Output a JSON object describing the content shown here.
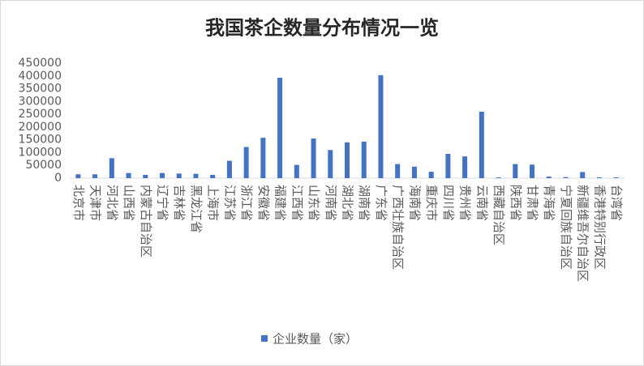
{
  "chart_data": {
    "type": "bar",
    "title": "我国茶企数量分布情况一览",
    "categories": [
      "北京市",
      "天津市",
      "河北省",
      "山西省",
      "内蒙古自治区",
      "辽宁省",
      "吉林省",
      "黑龙江省",
      "上海市",
      "江苏省",
      "浙江省",
      "安徽省",
      "福建省",
      "江西省",
      "山东省",
      "河南省",
      "湖北省",
      "湖南省",
      "广东省",
      "广西壮族自治区",
      "海南省",
      "重庆市",
      "四川省",
      "贵州省",
      "云南省",
      "西藏自治区",
      "陕西省",
      "甘肃省",
      "青海省",
      "宁夏回族自治区",
      "新疆维吾尔自治区",
      "香港特别行政区",
      "台湾省"
    ],
    "series": [
      {
        "name": "企业数量（家）",
        "color": "#4472c4",
        "values": [
          15000,
          15000,
          78000,
          20000,
          13000,
          20000,
          18000,
          17000,
          13000,
          68000,
          122000,
          158000,
          393000,
          52000,
          155000,
          110000,
          140000,
          143000,
          403000,
          55000,
          45000,
          25000,
          95000,
          85000,
          260000,
          3000,
          55000,
          53000,
          6000,
          4000,
          24000,
          3000,
          3000
        ]
      }
    ],
    "ylim": [
      0,
      450000
    ],
    "yticks": [
      0,
      50000,
      100000,
      150000,
      200000,
      250000,
      300000,
      350000,
      400000,
      450000
    ],
    "grid": false,
    "legend": "bottom"
  }
}
